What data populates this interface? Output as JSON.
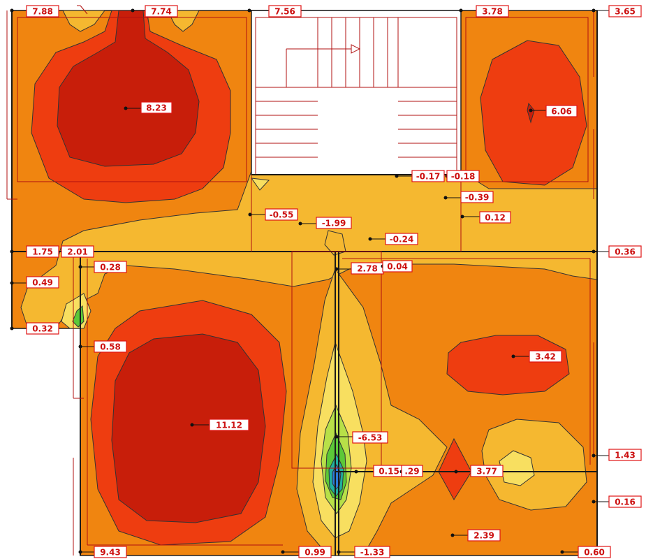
{
  "colors": {
    "background": "#ffffff",
    "level_high": "#c81e0a",
    "level_mid_high": "#ee3d10",
    "level_mid": "#f08510",
    "level_low_mid": "#f5b830",
    "level_low": "#f8df60",
    "level_negative": "#5cc838",
    "level_min": "#2b7ad8",
    "label_text": "#cc1010",
    "label_border": "#e01414",
    "line": "#b01010"
  },
  "labels": [
    {
      "text": "7.88"
    },
    {
      "text": "7.74"
    },
    {
      "text": "7.56"
    },
    {
      "text": "3.78"
    },
    {
      "text": "3.65"
    },
    {
      "text": "8.23"
    },
    {
      "text": "6.06"
    },
    {
      "text": "-0.17"
    },
    {
      "text": "-0.18"
    },
    {
      "text": "-0.39"
    },
    {
      "text": "0.12"
    },
    {
      "text": "-0.55"
    },
    {
      "text": "-1.99"
    },
    {
      "text": "-0.24"
    },
    {
      "text": "1.75"
    },
    {
      "text": "2.01"
    },
    {
      "text": "0.36"
    },
    {
      "text": "0.28"
    },
    {
      "text": "2.78"
    },
    {
      "text": "0.04"
    },
    {
      "text": "0.49"
    },
    {
      "text": "0.32"
    },
    {
      "text": "0.58"
    },
    {
      "text": "3.42"
    },
    {
      "text": "11.12"
    },
    {
      "text": "-6.53"
    },
    {
      "text": "1.43"
    },
    {
      "text": "0.15"
    },
    {
      "text": ".29"
    },
    {
      "text": "3.77"
    },
    {
      "text": "0.16"
    },
    {
      "text": "2.39"
    },
    {
      "text": "9.43"
    },
    {
      "text": "0.99"
    },
    {
      "text": "-1.33"
    },
    {
      "text": "0.60"
    }
  ]
}
